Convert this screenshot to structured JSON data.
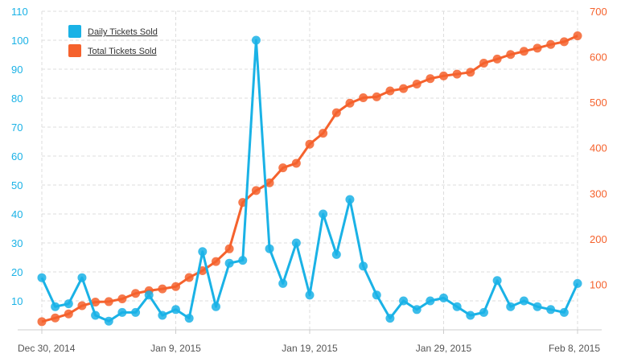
{
  "colors": {
    "daily": "#1ab2e6",
    "total": "#f5622d",
    "grid": "#dddddd",
    "axis": "#cccccc"
  },
  "chart_data": {
    "type": "line",
    "title": "",
    "x": [
      "2014-12-30",
      "2014-12-31",
      "2015-01-01",
      "2015-01-02",
      "2015-01-03",
      "2015-01-04",
      "2015-01-05",
      "2015-01-06",
      "2015-01-07",
      "2015-01-08",
      "2015-01-09",
      "2015-01-10",
      "2015-01-11",
      "2015-01-12",
      "2015-01-13",
      "2015-01-14",
      "2015-01-15",
      "2015-01-16",
      "2015-01-17",
      "2015-01-18",
      "2015-01-19",
      "2015-01-20",
      "2015-01-21",
      "2015-01-22",
      "2015-01-23",
      "2015-01-24",
      "2015-01-25",
      "2015-01-26",
      "2015-01-27",
      "2015-01-28",
      "2015-01-29",
      "2015-01-30",
      "2015-01-31",
      "2015-02-01",
      "2015-02-02",
      "2015-02-03",
      "2015-02-04",
      "2015-02-05",
      "2015-02-06",
      "2015-02-07",
      "2015-02-08"
    ],
    "x_ticks": [
      "Dec 30, 2014",
      "Jan 9, 2015",
      "Jan 19, 2015",
      "Jan 29, 2015",
      "Feb 8, 2015"
    ],
    "grid": true,
    "legend_position": "top-left",
    "y_left": {
      "ticks": [
        10,
        20,
        30,
        40,
        50,
        60,
        70,
        80,
        90,
        100,
        110
      ],
      "range": [
        0,
        110
      ]
    },
    "y_right": {
      "ticks": [
        100,
        200,
        300,
        400,
        500,
        600,
        700
      ],
      "range": [
        0,
        700
      ]
    },
    "series": [
      {
        "name": "Daily Tickets Sold",
        "axis": "left",
        "values": [
          18,
          8,
          9,
          18,
          5,
          3,
          6,
          6,
          12,
          5,
          7,
          4,
          27,
          8,
          23,
          24,
          100,
          28,
          16,
          30,
          12,
          40,
          26,
          45,
          22,
          12,
          4,
          10,
          7,
          10,
          11,
          8,
          5,
          6,
          17,
          8,
          10,
          8,
          7,
          6,
          16
        ]
      },
      {
        "name": "Total Tickets Sold",
        "axis": "right",
        "values": [
          18,
          26,
          35,
          53,
          61,
          62,
          68,
          80,
          86,
          90,
          95,
          115,
          130,
          150,
          178,
          280,
          306,
          323,
          356,
          366,
          408,
          432,
          477,
          498,
          510,
          512,
          525,
          530,
          540,
          552,
          558,
          562,
          566,
          586,
          595,
          605,
          612,
          619,
          627,
          633,
          646
        ]
      }
    ]
  }
}
